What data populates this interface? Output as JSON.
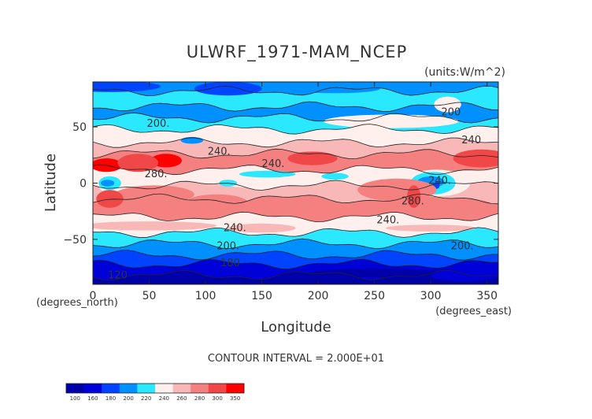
{
  "chart_data": {
    "type": "heatmap",
    "title": "ULWRF_1971-MAM_NCEP",
    "units_label": "(units:W/m^2)",
    "xlabel": "Longitude",
    "ylabel": "Latitude",
    "x_unit_label": "(degrees_east)",
    "y_unit_label": "(degrees_north)",
    "xlim": [
      0,
      360
    ],
    "ylim": [
      -90,
      90
    ],
    "x_ticks": [
      0,
      50,
      100,
      150,
      200,
      250,
      300,
      350
    ],
    "y_ticks": [
      -50,
      0,
      50
    ],
    "contour_interval_text": "CONTOUR INTERVAL = 2.000E+01",
    "contour_labels": [
      {
        "text": "200.",
        "lon": 58,
        "lat": 53
      },
      {
        "text": "200",
        "lon": 318,
        "lat": 63
      },
      {
        "text": "240",
        "lon": 336,
        "lat": 38
      },
      {
        "text": "240.",
        "lon": 112,
        "lat": 28
      },
      {
        "text": "240.",
        "lon": 160,
        "lat": 17
      },
      {
        "text": "280.",
        "lon": 56,
        "lat": 8
      },
      {
        "text": "240.",
        "lon": 308,
        "lat": 2
      },
      {
        "text": "280.",
        "lon": 284,
        "lat": -16
      },
      {
        "text": "240.",
        "lon": 262,
        "lat": -33
      },
      {
        "text": "240.",
        "lon": 126,
        "lat": -40
      },
      {
        "text": "200.",
        "lon": 120,
        "lat": -56
      },
      {
        "text": "200.",
        "lon": 328,
        "lat": -56
      },
      {
        "text": "180",
        "lon": 122,
        "lat": -71
      },
      {
        "text": "120",
        "lon": 22,
        "lat": -82
      }
    ],
    "colorbar": {
      "levels": [
        "100",
        "160",
        "180",
        "200",
        "220",
        "240",
        "260",
        "280",
        "300",
        "350"
      ],
      "colors": [
        "#0000a8",
        "#0000d8",
        "#0044ff",
        "#0090ff",
        "#2ae8ff",
        "#fff0ee",
        "#f8b8b8",
        "#f48080",
        "#f04848",
        "#ff0000"
      ]
    }
  }
}
